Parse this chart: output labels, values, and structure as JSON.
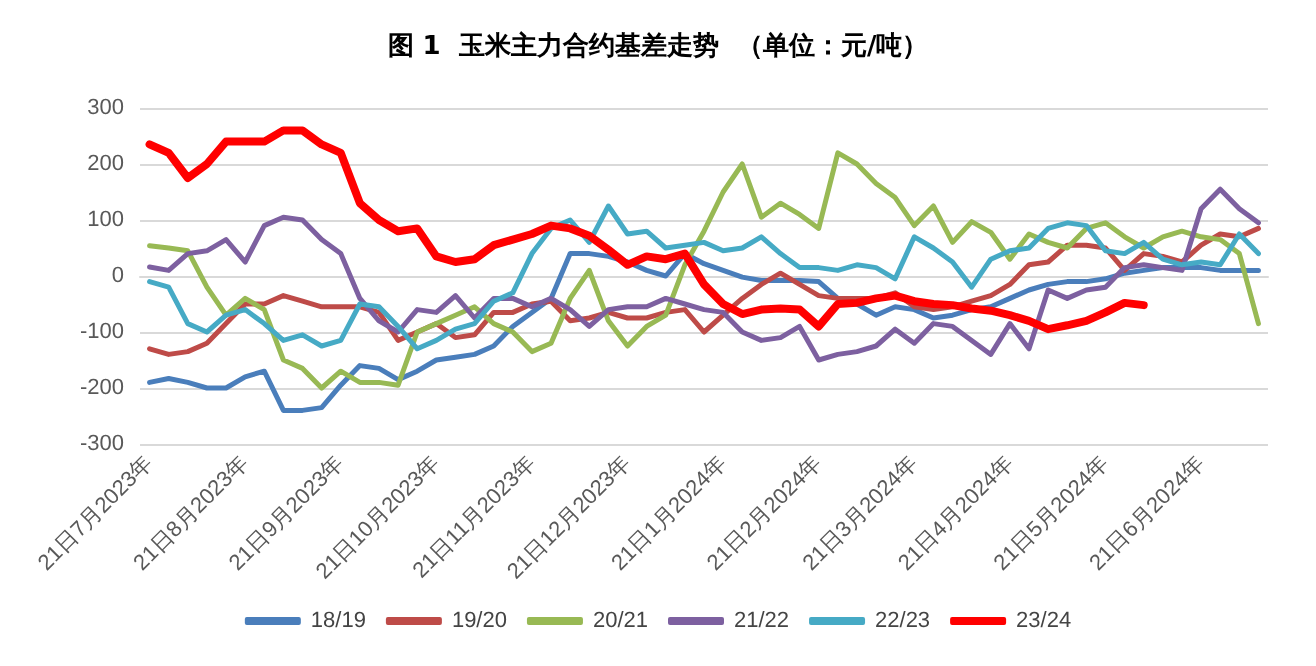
{
  "chart_data": {
    "type": "line",
    "title": "图 1  玉米主力合约基差走势  （单位：元/吨）",
    "categories": [
      "21日7月2023年",
      null,
      null,
      null,
      null,
      "21日8月2023年",
      null,
      null,
      null,
      null,
      "21日9月2023年",
      null,
      null,
      null,
      null,
      "21日10月2023年",
      null,
      null,
      null,
      null,
      "21日11月2023年",
      null,
      null,
      null,
      null,
      "21日12月2023年",
      null,
      null,
      null,
      null,
      "21日1月2024年",
      null,
      null,
      null,
      null,
      "21日2月2024年",
      null,
      null,
      null,
      null,
      "21日3月2024年",
      null,
      null,
      null,
      null,
      "21日4月2024年",
      null,
      null,
      null,
      null,
      "21日5月2024年",
      null,
      null,
      null,
      null,
      "21日6月2024年",
      null,
      null,
      null
    ],
    "series": [
      {
        "name": "18/19",
        "color": "#4a7ebb",
        "values": [
          -190,
          -183,
          -190,
          -200,
          -200,
          -180,
          -170,
          -240,
          -240,
          -235,
          -195,
          -160,
          -165,
          -185,
          -170,
          -150,
          -145,
          -140,
          -125,
          -90,
          -65,
          -40,
          40,
          40,
          35,
          25,
          10,
          0,
          40,
          22,
          10,
          -2,
          -8,
          -8,
          -8,
          -10,
          -40,
          -50,
          -70,
          -55,
          -60,
          -75,
          -70,
          -60,
          -55,
          -40,
          -25,
          -15,
          -10,
          -10,
          -5,
          5,
          10,
          15,
          15,
          15,
          10,
          10,
          10
        ]
      },
      {
        "name": "19/20",
        "color": "#be4b48",
        "values": [
          -130,
          -140,
          -135,
          -120,
          -85,
          -50,
          -50,
          -35,
          -45,
          -55,
          -55,
          -55,
          -65,
          -115,
          -100,
          -85,
          -110,
          -105,
          -65,
          -65,
          -50,
          -45,
          -80,
          -75,
          -65,
          -75,
          -75,
          -65,
          -60,
          -100,
          -70,
          -40,
          -15,
          5,
          -15,
          -35,
          -40,
          -40,
          -40,
          -30,
          -55,
          -60,
          -55,
          -45,
          -35,
          -15,
          20,
          25,
          55,
          55,
          50,
          10,
          40,
          35,
          25,
          55,
          75,
          70,
          85
        ]
      },
      {
        "name": "20/21",
        "color": "#98b954",
        "values": [
          54,
          50,
          45,
          -20,
          -70,
          -40,
          -60,
          -150,
          -165,
          -200,
          -170,
          -190,
          -190,
          -195,
          -100,
          -85,
          -70,
          -55,
          -85,
          -100,
          -135,
          -120,
          -40,
          10,
          -80,
          -125,
          -90,
          -70,
          20,
          80,
          150,
          200,
          105,
          130,
          110,
          85,
          220,
          200,
          165,
          140,
          90,
          125,
          60,
          97,
          78,
          30,
          75,
          60,
          50,
          85,
          95,
          70,
          50,
          70,
          80,
          70,
          65,
          40,
          -85
        ]
      },
      {
        "name": "21/22",
        "color": "#7d60a0",
        "values": [
          16,
          10,
          40,
          45,
          65,
          25,
          90,
          105,
          100,
          65,
          40,
          -40,
          -80,
          -100,
          -60,
          -65,
          -35,
          -75,
          -40,
          -40,
          -55,
          -40,
          -60,
          -90,
          -60,
          -55,
          -55,
          -40,
          -50,
          -60,
          -65,
          -100,
          -115,
          -110,
          -90,
          -150,
          -140,
          -135,
          -125,
          -95,
          -120,
          -85,
          -90,
          -115,
          -140,
          -85,
          -130,
          -25,
          -40,
          -25,
          -20,
          15,
          20,
          15,
          10,
          120,
          155,
          120,
          95
        ]
      },
      {
        "name": "22/23",
        "color": "#46aac5",
        "values": [
          -10,
          -20,
          -85,
          -100,
          -70,
          -60,
          -85,
          -115,
          -105,
          -125,
          -115,
          -50,
          -55,
          -90,
          -130,
          -115,
          -95,
          -85,
          -45,
          -30,
          40,
          85,
          100,
          60,
          125,
          75,
          80,
          50,
          55,
          60,
          45,
          50,
          70,
          40,
          15,
          15,
          10,
          20,
          15,
          -5,
          70,
          50,
          25,
          -20,
          30,
          45,
          50,
          85,
          95,
          90,
          45,
          40,
          60,
          30,
          20,
          25,
          20,
          75,
          40
        ]
      },
      {
        "name": "23/24",
        "color": "#ff0000",
        "values": [
          235,
          220,
          175,
          200,
          240,
          240,
          240,
          260,
          260,
          235,
          220,
          130,
          100,
          80,
          85,
          35,
          25,
          30,
          55,
          65,
          75,
          90,
          85,
          72,
          47,
          20,
          35,
          30,
          40,
          -15,
          -50,
          -68,
          -60,
          -58,
          -60,
          -90,
          -50,
          -48,
          -40,
          -35,
          -45,
          -50,
          -52,
          -58,
          -62,
          -70,
          -80,
          -95,
          -88,
          -80,
          -65,
          -48,
          -52,
          null,
          null,
          null,
          null,
          null,
          null
        ]
      }
    ],
    "ylim": [
      -300,
      300
    ],
    "yticks": [
      -300,
      -200,
      -100,
      0,
      100,
      200,
      300
    ],
    "grid": "y",
    "legend": "bottom",
    "marker": "none",
    "line_style": "solid"
  }
}
